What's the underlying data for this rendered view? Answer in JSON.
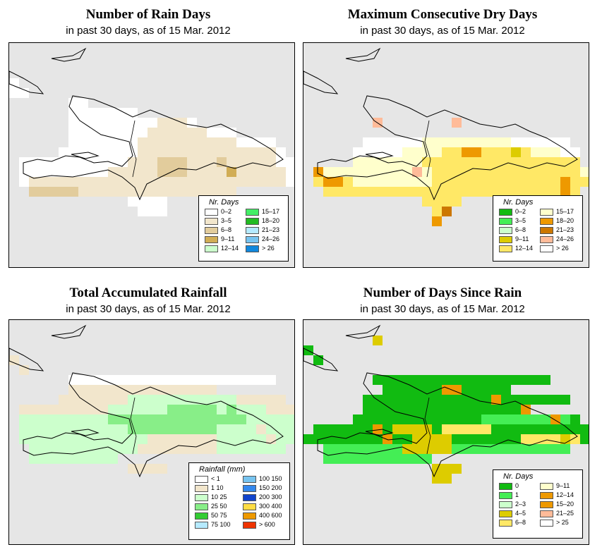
{
  "panels": [
    {
      "title": "Number of Rain Days",
      "subtitle": "in past 30 days, as of  15 Mar. 2012",
      "legend_title": "Nr. Days",
      "legend": [
        {
          "label": "0–2",
          "color": "#ffffff"
        },
        {
          "label": "3–5",
          "color": "#f2e6cc"
        },
        {
          "label": "6–8",
          "color": "#e2cc9c"
        },
        {
          "label": "9–11",
          "color": "#d1ad55"
        },
        {
          "label": "12–14",
          "color": "#ccffcc"
        },
        {
          "label": "15–17",
          "color": "#44ee66"
        },
        {
          "label": "18–20",
          "color": "#22bb22"
        },
        {
          "label": "21–23",
          "color": "#b5eaff"
        },
        {
          "label": "24–26",
          "color": "#77c4f0"
        },
        {
          "label": "> 26",
          "color": "#1188dd"
        }
      ]
    },
    {
      "title": "Maximum Consecutive Dry Days",
      "subtitle": "in past 30 days, as of  15 Mar. 2012",
      "legend_title": "Nr. Days",
      "legend": [
        {
          "label": "0–2",
          "color": "#11bb11"
        },
        {
          "label": "3–5",
          "color": "#44ee55"
        },
        {
          "label": "6–8",
          "color": "#ccffcc"
        },
        {
          "label": "9–11",
          "color": "#ddcc00"
        },
        {
          "label": "12–14",
          "color": "#ffe866"
        },
        {
          "label": "15–17",
          "color": "#ffffcc"
        },
        {
          "label": "18–20",
          "color": "#ee9900"
        },
        {
          "label": "21–23",
          "color": "#cc7700"
        },
        {
          "label": "24–26",
          "color": "#ffbb99"
        },
        {
          "label": "> 26",
          "color": "#ffffff"
        }
      ]
    },
    {
      "title": "Total Accumulated Rainfall",
      "subtitle": "in past 30 days, as of  15 Mar. 2012",
      "legend_title": "Rainfall (mm)",
      "legend": [
        {
          "label": "< 1",
          "color": "#ffffff"
        },
        {
          "label": "1    10",
          "color": "#f2e6cc"
        },
        {
          "label": "10    25",
          "color": "#ccffcc"
        },
        {
          "label": "25    50",
          "color": "#88ee88"
        },
        {
          "label": "50    75",
          "color": "#33cc33"
        },
        {
          "label": "75   100",
          "color": "#b5eaff"
        },
        {
          "label": "100   150",
          "color": "#77c4f0"
        },
        {
          "label": "150   200",
          "color": "#3388ee"
        },
        {
          "label": "200   300",
          "color": "#1144cc"
        },
        {
          "label": "300   400",
          "color": "#ffdd44"
        },
        {
          "label": "400   600",
          "color": "#ee9900"
        },
        {
          "label": "> 600",
          "color": "#ee3300"
        }
      ]
    },
    {
      "title": "Number of Days Since Rain",
      "subtitle": "in past 30 days, as of  15 Mar. 2012",
      "legend_title": "Nr. Days",
      "legend": [
        {
          "label": "0",
          "color": "#11bb11"
        },
        {
          "label": "1",
          "color": "#44ee55"
        },
        {
          "label": "2–3",
          "color": "#ccffcc"
        },
        {
          "label": "4–5",
          "color": "#ddcc00"
        },
        {
          "label": "6–8",
          "color": "#ffe866"
        },
        {
          "label": "9–11",
          "color": "#ffffcc"
        },
        {
          "label": "12–14",
          "color": "#ee9900"
        },
        {
          "label": "15–20",
          "color": "#ee9900"
        },
        {
          "label": "21–25",
          "color": "#ffbb99"
        },
        {
          "label": "> 25",
          "color": "#ffffff"
        }
      ]
    }
  ]
}
